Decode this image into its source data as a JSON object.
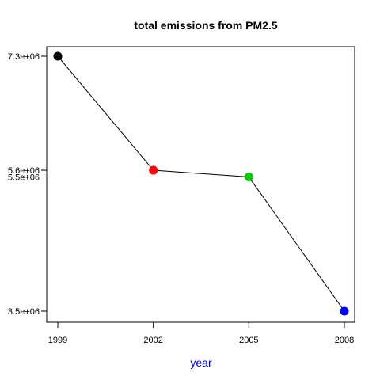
{
  "chart_data": {
    "type": "line",
    "title": "total emissions from PM2.5",
    "xlabel": "year",
    "ylabel": "",
    "x": [
      1999,
      2002,
      2005,
      2008
    ],
    "x_tick_labels": [
      "1999",
      "2002",
      "2005",
      "2008"
    ],
    "y_tick_values": [
      3500000,
      5500000,
      5600000,
      7300000
    ],
    "y_tick_labels": [
      "3.5e+06",
      "5.5e+06",
      "5.6e+06",
      "7.3e+06"
    ],
    "series": [
      {
        "values": [
          7300000,
          5600000,
          5500000,
          3500000
        ],
        "line_color": "#000000",
        "point_colors": [
          "#000000",
          "#ff0000",
          "#00cd00",
          "#0000ff"
        ]
      }
    ],
    "xlim": [
      1999,
      2008
    ],
    "ylim": [
      3500000,
      7300000
    ],
    "xlabel_color": "#0000ff",
    "grid": false,
    "legend": "none"
  }
}
